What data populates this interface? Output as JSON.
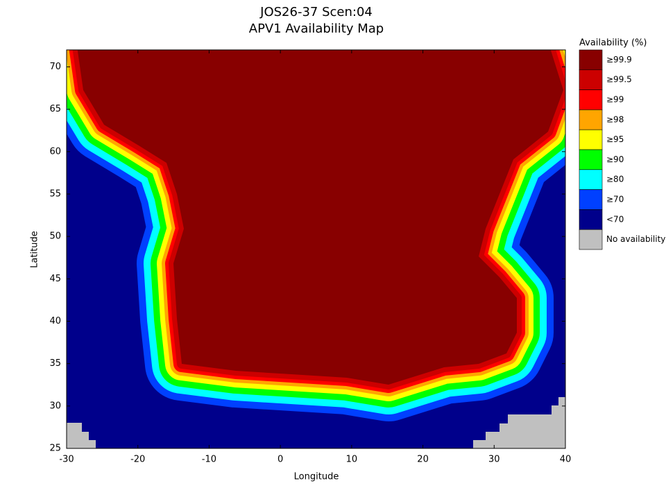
{
  "chart_data": {
    "type": "map",
    "title": [
      "JOS26-37 Scen:04",
      "APV1 Availability Map"
    ],
    "x_label": "Longitude",
    "y_label": "Latitude",
    "xlim": [
      -30,
      40
    ],
    "ylim": [
      25,
      72
    ],
    "xticks": [
      -30,
      -20,
      -10,
      0,
      10,
      20,
      30,
      40
    ],
    "yticks": [
      25,
      30,
      35,
      40,
      45,
      50,
      55,
      60,
      65,
      70
    ],
    "legend": {
      "title": "Availability (%)",
      "entries": [
        {
          "label": "≥99.9",
          "color": "#880000"
        },
        {
          "label": "≥99.5",
          "color": "#cc0000"
        },
        {
          "label": "≥99",
          "color": "#ff0000"
        },
        {
          "label": "≥98",
          "color": "#ffa500"
        },
        {
          "label": "≥95",
          "color": "#ffff00"
        },
        {
          "label": "≥90",
          "color": "#00ff00"
        },
        {
          "label": "≥80",
          "color": "#00ffff"
        },
        {
          "label": "≥70",
          "color": "#0040ff"
        },
        {
          "label": "<70",
          "color": "#00008b"
        },
        {
          "label": "No availability",
          "color": "#c0c0c0"
        }
      ]
    }
  }
}
